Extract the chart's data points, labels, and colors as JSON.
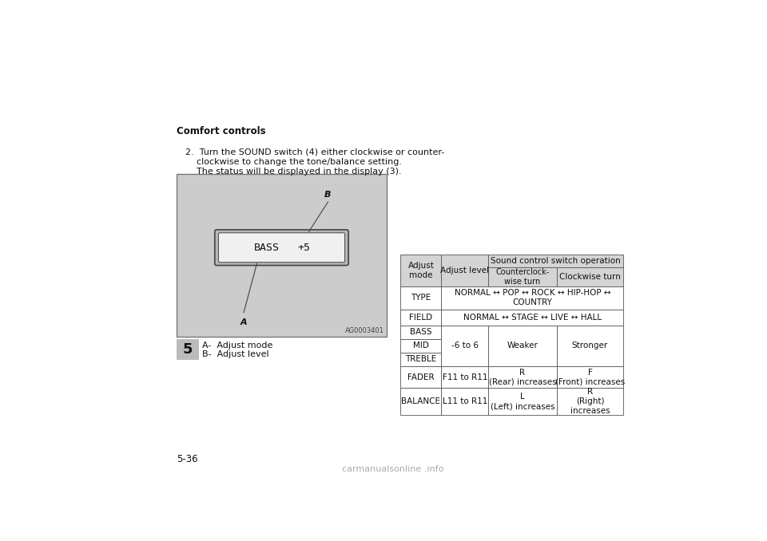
{
  "bg_color": "#ffffff",
  "title_bold": "Comfort controls",
  "para_line1": "2.  Turn the SOUND switch (4) either clockwise or counter-",
  "para_line2": "    clockwise to change the tone/balance setting.",
  "para_line3": "    The status will be displayed in the display (3).",
  "image_label_code": "AG0003401",
  "display_text_left": "BASS",
  "display_text_right": "+5",
  "label_A": "A",
  "label_B": "B",
  "caption_A": "A-  Adjust mode",
  "caption_B": "B-  Adjust level",
  "chapter_num": "5",
  "page_num": "5-36",
  "table_bg_header": "#d4d4d4",
  "table_bg_white": "#ffffff",
  "table_border": "#555555",
  "text_color": "#111111",
  "image_bg": "#cccccc",
  "watermark": "carmanualsonline .info",
  "watermark_color": "#aaaaaa"
}
